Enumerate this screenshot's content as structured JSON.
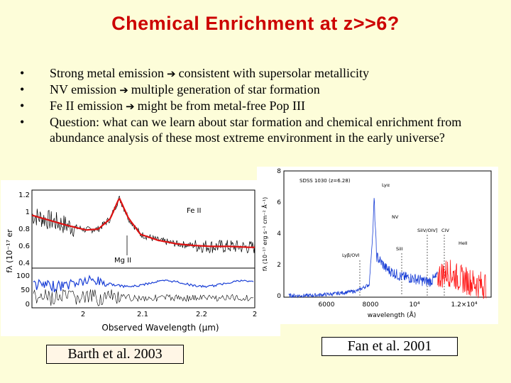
{
  "title": "Chemical Enrichment at z>>6?",
  "bullets": [
    {
      "before": "Strong metal emission",
      "after": "consistent with supersolar metallicity",
      "arrow": true
    },
    {
      "before": "NV emission",
      "after": "multiple generation of star formation",
      "arrow": true
    },
    {
      "before": "Fe II emission",
      "after": "might be from metal-free Pop III",
      "arrow": true
    },
    {
      "before": "Question: what can we learn about star formation and chemical enrichment from abundance analysis of these most extreme environment in the early universe?",
      "after": "",
      "arrow": false
    }
  ],
  "bullet_symbol": "•",
  "arrow_symbol": "➔",
  "colors": {
    "title": "#cc0000",
    "model": "#dd1111",
    "blue": "#1a3fd6",
    "red_spectrum": "#ff1a1a",
    "background": "#fdfdd9"
  },
  "figures": {
    "left": {
      "caption": "Barth et al. 2003",
      "xlabel": "Observed Wavelength (μm)",
      "ylabel": "fλ (10⁻¹⁷ er",
      "labels": {
        "fe": "Fe II",
        "mg": "Mg II"
      },
      "chart_data": {
        "type": "line",
        "series": [
          {
            "x": [
              1.93,
              1.96,
              1.99,
              2.02,
              2.04,
              2.06,
              2.075,
              2.09,
              2.11,
              2.14,
              2.17,
              2.2,
              2.23,
              2.26,
              2.29
            ],
            "y": [
              0.96,
              0.9,
              0.84,
              0.79,
              0.8,
              0.92,
              1.16,
              0.93,
              0.74,
              0.67,
              0.63,
              0.61,
              0.6,
              0.6,
              0.59
            ]
          }
        ],
        "top_yticks": [
          "1.2",
          "1",
          "0.8",
          "0.6",
          "0.4"
        ],
        "bottom_yticks": [
          "100",
          "50",
          "0"
        ],
        "xticks": [
          "2",
          "2.1",
          "2.2",
          "2"
        ],
        "xlim": [
          1.93,
          2.3
        ],
        "ylim": [
          0.35,
          1.25
        ]
      }
    },
    "right": {
      "caption": "Fan et al. 2001",
      "object": "SDSS 1030 (z=6.28)",
      "xlabel": "wavelength (Å)",
      "ylabel": "fλ (10⁻¹⁷ erg s⁻¹ cm⁻² Å⁻¹)",
      "line_labels": {
        "lya": "Lyα",
        "nv": "NV",
        "siiv": "SiIV/OIV]",
        "civ": "CIV",
        "heii": "HeII",
        "lyb": "Lyβ/OVI",
        "siii": "SiII"
      },
      "chart_data": {
        "type": "line",
        "x": [
          4200,
          5000,
          6000,
          7000,
          7500,
          7650,
          7700,
          7800,
          8200,
          8800,
          9300,
          9800,
          10000,
          10400,
          10700,
          11200,
          11600,
          12000
        ],
        "y": [
          0.1,
          0.1,
          0.2,
          0.4,
          0.8,
          4.2,
          6.3,
          2.6,
          1.8,
          1.3,
          1.2,
          1.0,
          1.0,
          1.4,
          1.6,
          1.2,
          1.0,
          0.8
        ],
        "yticks": [
          "8",
          "6",
          "4",
          "2",
          "0"
        ],
        "xticks": [
          "6000",
          "8000",
          "10⁴",
          "1.2×10⁴"
        ],
        "ylim": [
          0,
          8
        ],
        "xlim": [
          4000,
          12500
        ]
      }
    }
  }
}
